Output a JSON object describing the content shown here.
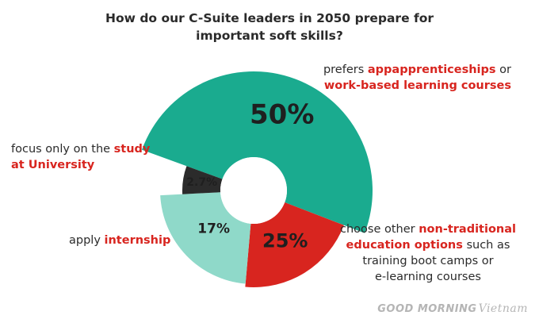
{
  "title": {
    "line1": "How do our C-Suite leaders in 2050 prepare for",
    "line2": "important soft skills?"
  },
  "labels": {
    "apprenticeship": {
      "pre": "prefers ",
      "hl1": "appapprenticeships",
      "post": " or",
      "hl2": "work-based learning courses"
    },
    "university": {
      "pre": "focus only on the ",
      "hl1": "study",
      "hl2": "at University"
    },
    "internship": {
      "pre": "apply ",
      "hl": "internship"
    },
    "non_traditional": {
      "pre": "choose other ",
      "hl1": "non-traditional",
      "hl2": "education options",
      "post2": " such as",
      "line3": "training boot camps or",
      "line4": "e-learning courses"
    }
  },
  "watermark": {
    "main": "GOOD MORNING",
    "script": "Vietnam"
  },
  "chart_data": {
    "type": "pie",
    "title": "How do our C-Suite leaders in 2050 prepare for important soft skills?",
    "slices": [
      {
        "label": "prefers appapprenticeships or work-based learning courses",
        "value": 50,
        "display": "50%",
        "color": "#1aab8f"
      },
      {
        "label": "choose other non-traditional education options such as training boot camps or e-learning courses",
        "value": 25,
        "display": "25%",
        "color": "#d8251f"
      },
      {
        "label": "apply internship",
        "value": 17,
        "display": "17%",
        "color": "#8fd9c9"
      },
      {
        "label": "focus only on the study at University",
        "value": 2.7,
        "display": "2.7%",
        "color": "#2b2b2b"
      }
    ]
  }
}
